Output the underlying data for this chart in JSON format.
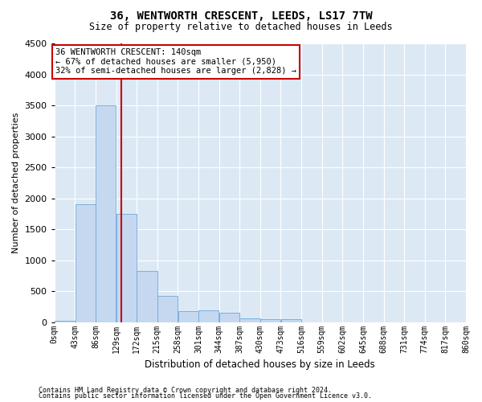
{
  "title": "36, WENTWORTH CRESCENT, LEEDS, LS17 7TW",
  "subtitle": "Size of property relative to detached houses in Leeds",
  "xlabel": "Distribution of detached houses by size in Leeds",
  "ylabel": "Number of detached properties",
  "footnote1": "Contains HM Land Registry data © Crown copyright and database right 2024.",
  "footnote2": "Contains public sector information licensed under the Open Government Licence v3.0.",
  "annotation_title": "36 WENTWORTH CRESCENT: 140sqm",
  "annotation_line1": "← 67% of detached houses are smaller (5,950)",
  "annotation_line2": "32% of semi-detached houses are larger (2,828) →",
  "property_size": 140,
  "bin_size": 43,
  "bins_left": [
    0,
    43,
    86,
    129,
    172,
    215,
    258,
    301,
    344,
    387,
    430,
    473,
    516,
    559,
    602,
    645,
    688,
    731,
    774,
    817
  ],
  "bar_heights": [
    20,
    1900,
    3500,
    1750,
    830,
    420,
    175,
    195,
    145,
    55,
    45,
    50,
    0,
    0,
    0,
    0,
    0,
    0,
    0,
    0
  ],
  "bar_color": "#c5d8f0",
  "bar_edge_color": "#6fa8d8",
  "vline_color": "#cc0000",
  "ylim_max": 4500,
  "yticks": [
    0,
    500,
    1000,
    1500,
    2000,
    2500,
    3000,
    3500,
    4000,
    4500
  ],
  "xlim_max": 860,
  "background_color": "#dce9f5",
  "grid_color": "#ffffff",
  "annotation_box_facecolor": "#ffffff",
  "annotation_box_edgecolor": "#cc0000",
  "tick_labels": [
    "0sqm",
    "43sqm",
    "86sqm",
    "129sqm",
    "172sqm",
    "215sqm",
    "258sqm",
    "301sqm",
    "344sqm",
    "387sqm",
    "430sqm",
    "473sqm",
    "516sqm",
    "559sqm",
    "602sqm",
    "645sqm",
    "688sqm",
    "731sqm",
    "774sqm",
    "817sqm",
    "860sqm"
  ]
}
